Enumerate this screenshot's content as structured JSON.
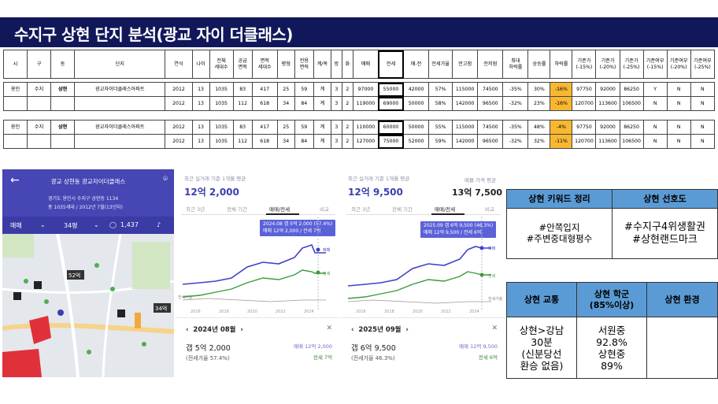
{
  "page_title": "수지구 상현 단지 분석(광교 자이 더클래스)",
  "table": {
    "headers": [
      "시",
      "구",
      "동",
      "단지",
      "연식",
      "나이",
      "전체\n세대수",
      "공급\n면적",
      "면적\n세대수",
      "평형",
      "전용\n면적",
      "계/복",
      "방",
      "화",
      "매매",
      "전세",
      "매-전",
      "전세가율",
      "전고점",
      "전저점",
      "최대\n하락률",
      "상승률",
      "하락률",
      "기준가\n(-15%)",
      "기준가\n(-20%)",
      "기준가\n(-25%)",
      "기준여부\n(-15%)",
      "기준여부\n(-20%)",
      "기준여부\n(-25%)"
    ],
    "group1": [
      [
        "용인",
        "수지",
        "상현",
        "광교자이더클래스아파트",
        "2012",
        "13",
        "1035",
        "83",
        "417",
        "25",
        "59",
        "계",
        "3",
        "2",
        "97000",
        "55000",
        "42000",
        "57%",
        "115000",
        "74500",
        "-35%",
        "30%",
        "-16%",
        "97750",
        "92000",
        "86250",
        "Y",
        "N",
        "N"
      ],
      [
        "",
        "",
        "",
        "",
        "2012",
        "13",
        "1035",
        "112",
        "618",
        "34",
        "84",
        "계",
        "3",
        "2",
        "119000",
        "69000",
        "50000",
        "58%",
        "142000",
        "96500",
        "-32%",
        "23%",
        "-16%",
        "120700",
        "113600",
        "106500",
        "N",
        "N",
        "N"
      ]
    ],
    "group2": [
      [
        "용인",
        "수지",
        "상현",
        "광교자이더클래스아파트",
        "2012",
        "13",
        "1035",
        "83",
        "417",
        "25",
        "59",
        "계",
        "3",
        "2",
        "110000",
        "60000",
        "50000",
        "55%",
        "115000",
        "74500",
        "-35%",
        "48%",
        "-4%",
        "97750",
        "92000",
        "86250",
        "N",
        "N",
        "N"
      ],
      [
        "",
        "",
        "",
        "",
        "2012",
        "13",
        "1035",
        "112",
        "618",
        "34",
        "84",
        "계",
        "3",
        "2",
        "127000",
        "75000",
        "52000",
        "59%",
        "142000",
        "96500",
        "-32%",
        "32%",
        "-11%",
        "120700",
        "113600",
        "106500",
        "N",
        "N",
        "N"
      ]
    ]
  },
  "map": {
    "title": "광교 상현동 광교자이더클래스",
    "address": "경기도 용인시 수지구 상현동 1134",
    "info": "총 1035세대 / 2012년 7월(13년차)",
    "trade_label": "매매",
    "size_label": "34평",
    "count": "1,437",
    "markers": [
      "52억",
      "34억"
    ]
  },
  "panel1": {
    "caption": "최근 실거래 기준 1개월 평균",
    "price": "12억 2,000",
    "tabs": [
      "최근 3년",
      "전체 기간",
      "매매/전세",
      "비교"
    ],
    "tooltip_line1": "2024.08 갭 5억 2,000 (57.4%)",
    "tooltip_line2": "매매 12억 2,000 / 전세 7억",
    "line_label_sale": "매매",
    "line_label_jeonse": "전세",
    "line_label_rate": "전세가율",
    "years": [
      "2016",
      "2018",
      "2020",
      "2022",
      "2024"
    ],
    "footer_date": "2024년 08월",
    "footer_gap": "갭 5억 2,000",
    "footer_rate": "(전세가율 57.4%)",
    "footer_sale": "매매 12억 2,000",
    "footer_jeonse": "전세 7억"
  },
  "panel2": {
    "caption": "최근 실거래 기준 1개월 평균",
    "price": "12억 9,500",
    "caption_r": "매물 가격 평균",
    "price_r": "13억 7,500",
    "tabs": [
      "최근 3년",
      "전체 기간",
      "매매/전세",
      "비교"
    ],
    "tooltip_line1": "2025.09 갭 6억 9,500 (46.3%)",
    "tooltip_line2": "매매 12억 9,500 / 전세 6억",
    "line_label_sale": "매매",
    "line_label_jeonse": "전세",
    "line_label_rate": "전세가율",
    "years": [
      "2016",
      "2018",
      "2020",
      "2022",
      "2024"
    ],
    "footer_date": "2025년 09월",
    "footer_gap": "갭 6억 9,500",
    "footer_rate": "(전세가율 46.3%)",
    "footer_sale": "매매 12억 9,500",
    "footer_jeonse": "전세 6억"
  },
  "keyword_table": {
    "h1": "상현 키워드 정리",
    "h2": "상현 선호도",
    "c1": "#안쪽입지\n#주변중대형평수",
    "c2": "#수지구4위생활권\n#상현랜드마크"
  },
  "env_table": {
    "h1": "상현 교통",
    "h2": "상현 학군\n(85%이상)",
    "h3": "상현 환경",
    "c1": "상현>강남\n30분\n(신분당선\n환승 없음)",
    "c2": "서원중\n92.8%\n상현중\n89%",
    "c3": ""
  }
}
